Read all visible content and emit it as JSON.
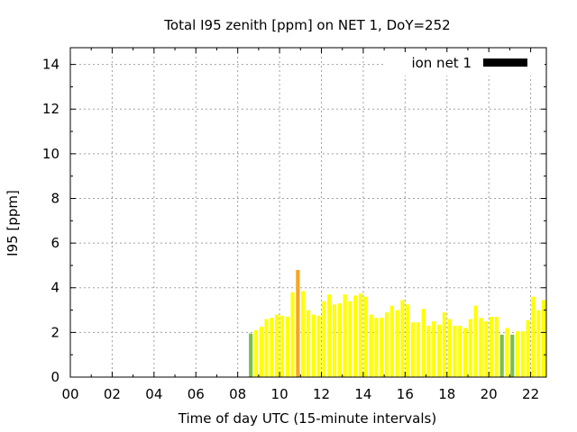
{
  "chart_data": {
    "type": "bar",
    "title": "Total I95 zenith [ppm] on NET 1, DoY=252",
    "xlabel": "Time of day UTC (15-minute intervals)",
    "ylabel": "I95 [ppm]",
    "xlim": [
      0,
      22.75
    ],
    "ylim": [
      0,
      14.75
    ],
    "xticks": [
      "00",
      "02",
      "04",
      "06",
      "08",
      "10",
      "12",
      "14",
      "16",
      "18",
      "20",
      "22"
    ],
    "yticks": [
      "0",
      "2",
      "4",
      "6",
      "8",
      "10",
      "12",
      "14"
    ],
    "grid": true,
    "legend": {
      "position": "top-right",
      "entries": [
        {
          "name": "ion net 1",
          "color": "#000000"
        }
      ]
    },
    "colors": {
      "green": "#7ac143",
      "yellow": "#ffff00",
      "orange": "#f5a623"
    },
    "series": [
      {
        "name": "ion net 1",
        "bars": [
          {
            "x": 8.5,
            "value": 1.95,
            "color": "green"
          },
          {
            "x": 8.75,
            "value": 2.1,
            "color": "yellow"
          },
          {
            "x": 9.0,
            "value": 2.25,
            "color": "yellow"
          },
          {
            "x": 9.25,
            "value": 2.6,
            "color": "yellow"
          },
          {
            "x": 9.5,
            "value": 2.65,
            "color": "yellow"
          },
          {
            "x": 9.75,
            "value": 2.8,
            "color": "yellow"
          },
          {
            "x": 10.0,
            "value": 2.75,
            "color": "yellow"
          },
          {
            "x": 10.25,
            "value": 2.7,
            "color": "yellow"
          },
          {
            "x": 10.5,
            "value": 3.8,
            "color": "yellow"
          },
          {
            "x": 10.75,
            "value": 4.8,
            "color": "orange"
          },
          {
            "x": 11.0,
            "value": 3.85,
            "color": "yellow"
          },
          {
            "x": 11.25,
            "value": 3.0,
            "color": "yellow"
          },
          {
            "x": 11.5,
            "value": 2.8,
            "color": "yellow"
          },
          {
            "x": 11.75,
            "value": 2.75,
            "color": "yellow"
          },
          {
            "x": 12.0,
            "value": 3.4,
            "color": "yellow"
          },
          {
            "x": 12.25,
            "value": 3.7,
            "color": "yellow"
          },
          {
            "x": 12.5,
            "value": 3.25,
            "color": "yellow"
          },
          {
            "x": 12.75,
            "value": 3.3,
            "color": "yellow"
          },
          {
            "x": 13.0,
            "value": 3.7,
            "color": "yellow"
          },
          {
            "x": 13.25,
            "value": 3.4,
            "color": "yellow"
          },
          {
            "x": 13.5,
            "value": 3.65,
            "color": "yellow"
          },
          {
            "x": 13.75,
            "value": 3.75,
            "color": "yellow"
          },
          {
            "x": 14.0,
            "value": 3.6,
            "color": "yellow"
          },
          {
            "x": 14.25,
            "value": 2.8,
            "color": "yellow"
          },
          {
            "x": 14.5,
            "value": 2.65,
            "color": "yellow"
          },
          {
            "x": 14.75,
            "value": 2.65,
            "color": "yellow"
          },
          {
            "x": 15.0,
            "value": 2.9,
            "color": "yellow"
          },
          {
            "x": 15.25,
            "value": 3.2,
            "color": "yellow"
          },
          {
            "x": 15.5,
            "value": 3.0,
            "color": "yellow"
          },
          {
            "x": 15.75,
            "value": 3.45,
            "color": "yellow"
          },
          {
            "x": 16.0,
            "value": 3.25,
            "color": "yellow"
          },
          {
            "x": 16.25,
            "value": 2.45,
            "color": "yellow"
          },
          {
            "x": 16.5,
            "value": 2.45,
            "color": "yellow"
          },
          {
            "x": 16.75,
            "value": 3.05,
            "color": "yellow"
          },
          {
            "x": 17.0,
            "value": 2.3,
            "color": "yellow"
          },
          {
            "x": 17.25,
            "value": 2.5,
            "color": "yellow"
          },
          {
            "x": 17.5,
            "value": 2.35,
            "color": "yellow"
          },
          {
            "x": 17.75,
            "value": 2.9,
            "color": "yellow"
          },
          {
            "x": 18.0,
            "value": 2.6,
            "color": "yellow"
          },
          {
            "x": 18.25,
            "value": 2.3,
            "color": "yellow"
          },
          {
            "x": 18.5,
            "value": 2.3,
            "color": "yellow"
          },
          {
            "x": 18.75,
            "value": 2.2,
            "color": "yellow"
          },
          {
            "x": 19.0,
            "value": 2.6,
            "color": "yellow"
          },
          {
            "x": 19.25,
            "value": 3.2,
            "color": "yellow"
          },
          {
            "x": 19.5,
            "value": 2.65,
            "color": "yellow"
          },
          {
            "x": 19.75,
            "value": 2.5,
            "color": "yellow"
          },
          {
            "x": 20.0,
            "value": 2.7,
            "color": "yellow"
          },
          {
            "x": 20.25,
            "value": 2.7,
            "color": "yellow"
          },
          {
            "x": 20.5,
            "value": 1.9,
            "color": "green"
          },
          {
            "x": 20.75,
            "value": 2.2,
            "color": "yellow"
          },
          {
            "x": 21.0,
            "value": 1.9,
            "color": "green"
          },
          {
            "x": 21.25,
            "value": 2.05,
            "color": "yellow"
          },
          {
            "x": 21.5,
            "value": 2.05,
            "color": "yellow"
          },
          {
            "x": 21.75,
            "value": 2.55,
            "color": "yellow"
          },
          {
            "x": 22.0,
            "value": 3.6,
            "color": "yellow"
          },
          {
            "x": 22.25,
            "value": 3.0,
            "color": "yellow"
          },
          {
            "x": 22.5,
            "value": 3.45,
            "color": "yellow"
          }
        ]
      }
    ]
  }
}
